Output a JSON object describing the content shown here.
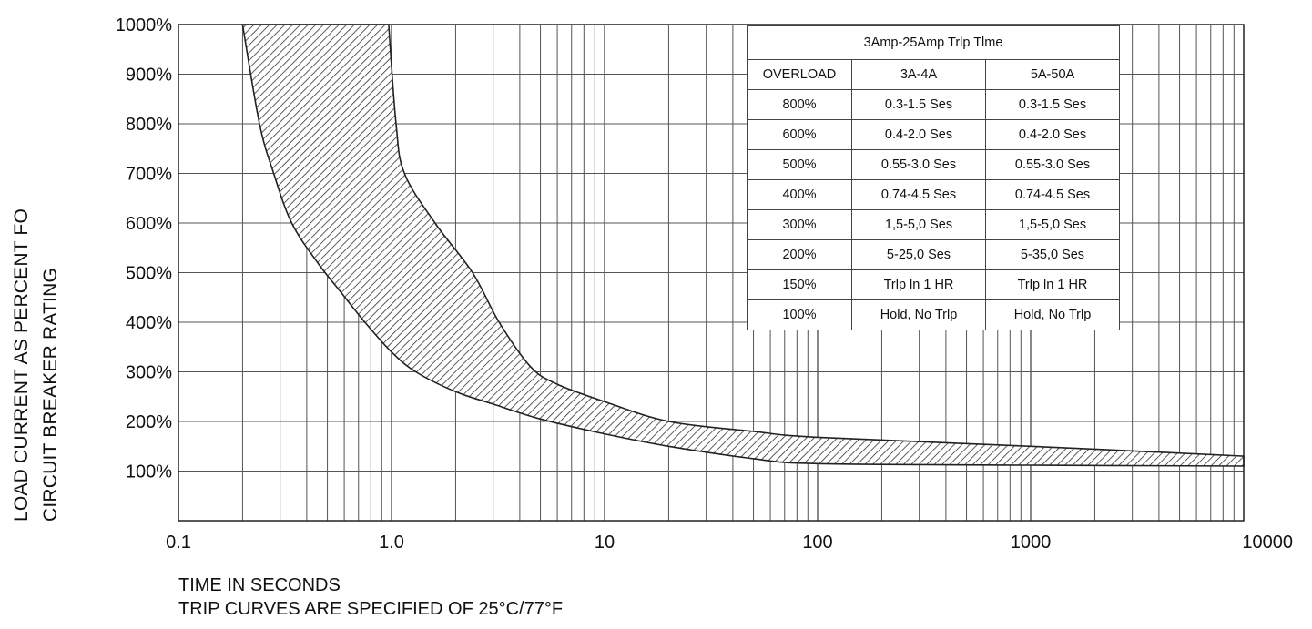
{
  "chart_data": {
    "type": "area",
    "title": "",
    "x_scale": "log",
    "xlim": [
      0.1,
      10000
    ],
    "ylim": [
      0,
      1000
    ],
    "grid": true,
    "xlabel_lines": [
      "TIME IN SECONDS",
      "TRIP CURVES ARE SPECIFIED OF 25°C/77°F"
    ],
    "ylabel_lines": [
      "LOAD CURRENT AS PERCENT FO",
      "CIRCUIT BREAKER RATING"
    ],
    "x_ticks": [
      {
        "value": 0.1,
        "label": "0.1"
      },
      {
        "value": 1,
        "label": "1.0"
      },
      {
        "value": 10,
        "label": "10"
      },
      {
        "value": 100,
        "label": "100"
      },
      {
        "value": 1000,
        "label": "1000"
      },
      {
        "value": 10000,
        "label": "10000"
      }
    ],
    "y_ticks": [
      {
        "value": 100,
        "label": "100%"
      },
      {
        "value": 200,
        "label": "200%"
      },
      {
        "value": 300,
        "label": "300%"
      },
      {
        "value": 400,
        "label": "400%"
      },
      {
        "value": 500,
        "label": "500%"
      },
      {
        "value": 600,
        "label": "600%"
      },
      {
        "value": 700,
        "label": "700%"
      },
      {
        "value": 800,
        "label": "800%"
      },
      {
        "value": 900,
        "label": "900%"
      },
      {
        "value": 1000,
        "label": "1000%"
      }
    ],
    "band": {
      "fill": "hatched",
      "lower": [
        {
          "x": 0.2,
          "y": 1000
        },
        {
          "x": 0.24,
          "y": 800
        },
        {
          "x": 0.28,
          "y": 700
        },
        {
          "x": 0.34,
          "y": 600
        },
        {
          "x": 0.45,
          "y": 520
        },
        {
          "x": 0.58,
          "y": 460
        },
        {
          "x": 0.75,
          "y": 400
        },
        {
          "x": 1.0,
          "y": 340
        },
        {
          "x": 1.3,
          "y": 300
        },
        {
          "x": 2.0,
          "y": 260
        },
        {
          "x": 3.0,
          "y": 235
        },
        {
          "x": 5.0,
          "y": 205
        },
        {
          "x": 10,
          "y": 175
        },
        {
          "x": 20,
          "y": 150
        },
        {
          "x": 50,
          "y": 125
        },
        {
          "x": 100,
          "y": 115
        },
        {
          "x": 1000,
          "y": 112
        },
        {
          "x": 10000,
          "y": 110
        }
      ],
      "upper": [
        {
          "x": 0.97,
          "y": 1000
        },
        {
          "x": 1.05,
          "y": 800
        },
        {
          "x": 1.15,
          "y": 700
        },
        {
          "x": 1.6,
          "y": 600
        },
        {
          "x": 2.4,
          "y": 500
        },
        {
          "x": 3.2,
          "y": 400
        },
        {
          "x": 4.5,
          "y": 310
        },
        {
          "x": 6,
          "y": 275
        },
        {
          "x": 10,
          "y": 240
        },
        {
          "x": 20,
          "y": 200
        },
        {
          "x": 50,
          "y": 180
        },
        {
          "x": 100,
          "y": 168
        },
        {
          "x": 1000,
          "y": 150
        },
        {
          "x": 10000,
          "y": 130
        }
      ]
    },
    "colors": {
      "line": "#222222",
      "grid": "#555555",
      "hatch": "#333333"
    }
  },
  "table": {
    "title": "3Amp-25Amp Trlp Tlme",
    "headers": [
      "OVERLOAD",
      "3A-4A",
      "5A-50A"
    ],
    "rows": [
      [
        "800%",
        "0.3-1.5 Ses",
        "0.3-1.5 Ses"
      ],
      [
        "600%",
        "0.4-2.0 Ses",
        "0.4-2.0 Ses"
      ],
      [
        "500%",
        "0.55-3.0 Ses",
        "0.55-3.0 Ses"
      ],
      [
        "400%",
        "0.74-4.5 Ses",
        "0.74-4.5 Ses"
      ],
      [
        "300%",
        "1,5-5,0 Ses",
        "1,5-5,0 Ses"
      ],
      [
        "200%",
        "5-25,0 Ses",
        "5-35,0 Ses"
      ],
      [
        "150%",
        "Trlp ln 1 HR",
        "Trlp ln 1 HR"
      ],
      [
        "100%",
        "Hold, No Trlp",
        "Hold, No Trlp"
      ]
    ]
  }
}
